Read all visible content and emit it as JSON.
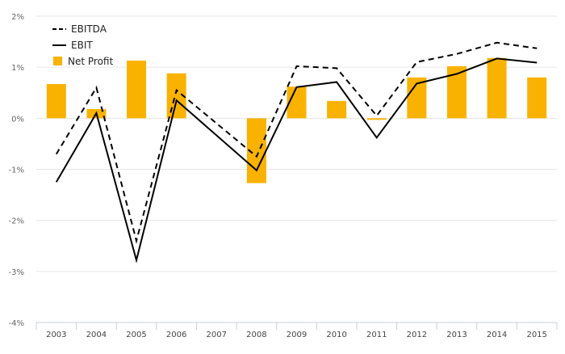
{
  "chart_data": {
    "type": "bar",
    "categories": [
      "2003",
      "2004",
      "2005",
      "2006",
      "2007",
      "2008",
      "2009",
      "2010",
      "2011",
      "2012",
      "2013",
      "2014",
      "2015"
    ],
    "ylim": [
      -4,
      2
    ],
    "yticks": [
      2,
      1,
      0,
      -1,
      -2,
      -3,
      -4
    ],
    "ytick_labels": [
      "2%",
      "1%",
      "0%",
      "-1%",
      "-2%",
      "-3%",
      "-4%"
    ],
    "grid": true,
    "legend_position": "top-left",
    "series": [
      {
        "name": "EBITDA",
        "kind": "line",
        "style": "dashed",
        "color": "#000000",
        "values": [
          -0.7,
          0.6,
          -2.4,
          0.55,
          null,
          -0.75,
          1.02,
          0.98,
          0.05,
          1.1,
          1.26,
          1.48,
          1.37
        ]
      },
      {
        "name": "EBIT",
        "kind": "line",
        "style": "solid",
        "color": "#000000",
        "values": [
          -1.25,
          0.1,
          -2.78,
          0.35,
          null,
          -1.02,
          0.61,
          0.71,
          -0.38,
          0.68,
          0.87,
          1.17,
          1.09
        ]
      },
      {
        "name": "Net Profit",
        "kind": "bar",
        "color": "#F9B200",
        "values": [
          0.67,
          0.18,
          1.13,
          0.88,
          null,
          -1.27,
          0.62,
          0.34,
          -0.03,
          0.8,
          1.02,
          1.18,
          0.8
        ]
      }
    ]
  }
}
